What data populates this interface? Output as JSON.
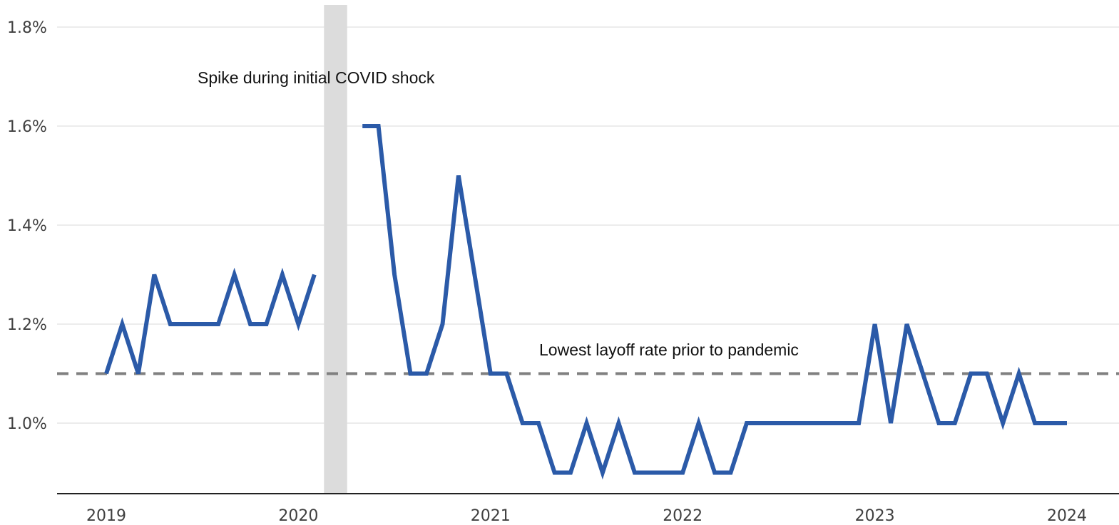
{
  "chart_data": {
    "type": "line",
    "title": "",
    "xlabel": "",
    "ylabel": "",
    "ylim": [
      0.86,
      1.83
    ],
    "y_ticks": [
      1.0,
      1.2,
      1.4,
      1.6,
      1.8
    ],
    "y_tick_labels": [
      "1.0%",
      "1.2%",
      "1.4%",
      "1.6%",
      "1.8%"
    ],
    "x_tick_labels": [
      "2019",
      "2020",
      "2021",
      "2022",
      "2023",
      "2024"
    ],
    "grid": true,
    "legend": "none",
    "series": [
      {
        "color": "#2b5aa8",
        "segments": [
          {
            "x": [
              "2019-01",
              "2019-02",
              "2019-03",
              "2019-04",
              "2019-05",
              "2019-06",
              "2019-07",
              "2019-08",
              "2019-09",
              "2019-10",
              "2019-11",
              "2019-12",
              "2020-01",
              "2020-02"
            ],
            "y": [
              1.1,
              1.2,
              1.1,
              1.3,
              1.2,
              1.2,
              1.2,
              1.2,
              1.3,
              1.2,
              1.2,
              1.3,
              1.2,
              1.3
            ]
          },
          {
            "x": [
              "2020-05",
              "2020-06",
              "2020-07",
              "2020-08",
              "2020-09",
              "2020-10",
              "2020-11",
              "2020-12",
              "2021-01",
              "2021-02",
              "2021-03",
              "2021-04",
              "2021-05",
              "2021-06",
              "2021-07",
              "2021-08",
              "2021-09",
              "2021-10",
              "2021-11",
              "2021-12",
              "2022-01",
              "2022-02",
              "2022-03",
              "2022-04",
              "2022-05",
              "2022-06",
              "2022-07",
              "2022-08",
              "2022-09",
              "2022-10",
              "2022-11",
              "2022-12",
              "2023-01",
              "2023-02",
              "2023-03",
              "2023-04",
              "2023-05",
              "2023-06",
              "2023-07",
              "2023-08",
              "2023-09",
              "2023-10",
              "2023-11",
              "2023-12",
              "2024-01"
            ],
            "y": [
              1.6,
              1.6,
              1.3,
              1.1,
              1.1,
              1.2,
              1.5,
              1.3,
              1.1,
              1.1,
              1.0,
              1.0,
              0.9,
              0.9,
              1.0,
              0.9,
              1.0,
              0.9,
              0.9,
              0.9,
              0.9,
              1.0,
              0.9,
              0.9,
              1.0,
              1.0,
              1.0,
              1.0,
              1.0,
              1.0,
              1.0,
              1.0,
              1.2,
              1.0,
              1.2,
              1.1,
              1.0,
              1.0,
              1.1,
              1.1,
              1.0,
              1.1,
              1.0,
              1.0,
              1.0
            ]
          }
        ]
      }
    ],
    "reference_line": {
      "y": 1.1,
      "style": "dashed",
      "color": "#808080",
      "label": "Lowest layoff rate prior to pandemic"
    },
    "shaded_period": {
      "start": "2020-03",
      "end": "2020-04",
      "color": "#dcdcdc"
    },
    "annotations": [
      {
        "text": "Spike during initial COVID shock",
        "x": "2020-03",
        "y": 1.7
      },
      {
        "text": "Lowest layoff rate prior to pandemic",
        "x": "2022-01",
        "y": 1.14
      }
    ]
  }
}
